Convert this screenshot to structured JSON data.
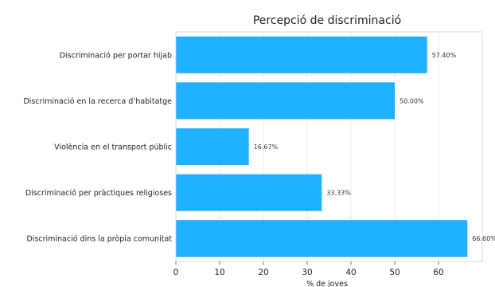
{
  "chart_data": {
    "type": "bar",
    "orientation": "horizontal",
    "title": "Percepció de discriminació",
    "xlabel": "% de joves",
    "ylabel": "",
    "categories": [
      "Discriminació per portar hijab",
      "Discriminació en la recerca d’habitatge",
      "Violència en el transport públic",
      "Discriminació per pràctiques religioses",
      "Discriminació dins la pròpia comunitat"
    ],
    "values": [
      57.4,
      50.0,
      16.67,
      33.33,
      66.6
    ],
    "value_labels": [
      "57.40%",
      "50.00%",
      "16.67%",
      "33.33%",
      "66.60%"
    ],
    "xlim": [
      0,
      70
    ],
    "xticks": [
      0,
      10,
      20,
      30,
      40,
      50,
      60
    ],
    "grid": true,
    "bar_color": "#1fb0ff"
  }
}
